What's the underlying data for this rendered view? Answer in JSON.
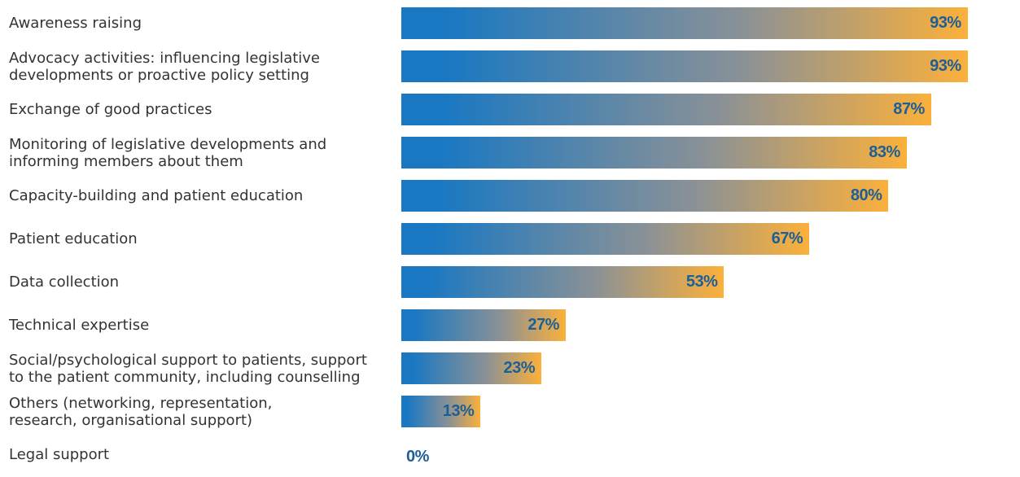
{
  "chart_data": {
    "type": "bar",
    "orientation": "horizontal",
    "title": "",
    "xlabel": "",
    "ylabel": "",
    "xlim": [
      0,
      100
    ],
    "grid": false,
    "legend": "none",
    "value_suffix": "%",
    "colors": {
      "gradient_start": "#1a78c2",
      "gradient_end": "#fbb03b",
      "value_text": "#1b5f99",
      "label_text": "#333333"
    },
    "categories": [
      "Awareness raising",
      "Advocacy activities: influencing legislative\ndevelopments or proactive policy setting",
      "Exchange of good practices",
      "Monitoring of legislative developments and\ninforming members about them",
      "Capacity-building and patient education",
      "Patient education",
      "Data collection",
      "Technical expertise",
      "Social/psychological support to patients, support\nto the patient community, including counselling",
      "Others (networking, representation,\nresearch, organisational support)",
      "Legal support"
    ],
    "values": [
      93,
      93,
      87,
      83,
      80,
      67,
      53,
      27,
      23,
      13,
      0
    ],
    "value_labels": [
      "93%",
      "93%",
      "87%",
      "83%",
      "80%",
      "67%",
      "53%",
      "27%",
      "23%",
      "13%",
      "0%"
    ]
  }
}
